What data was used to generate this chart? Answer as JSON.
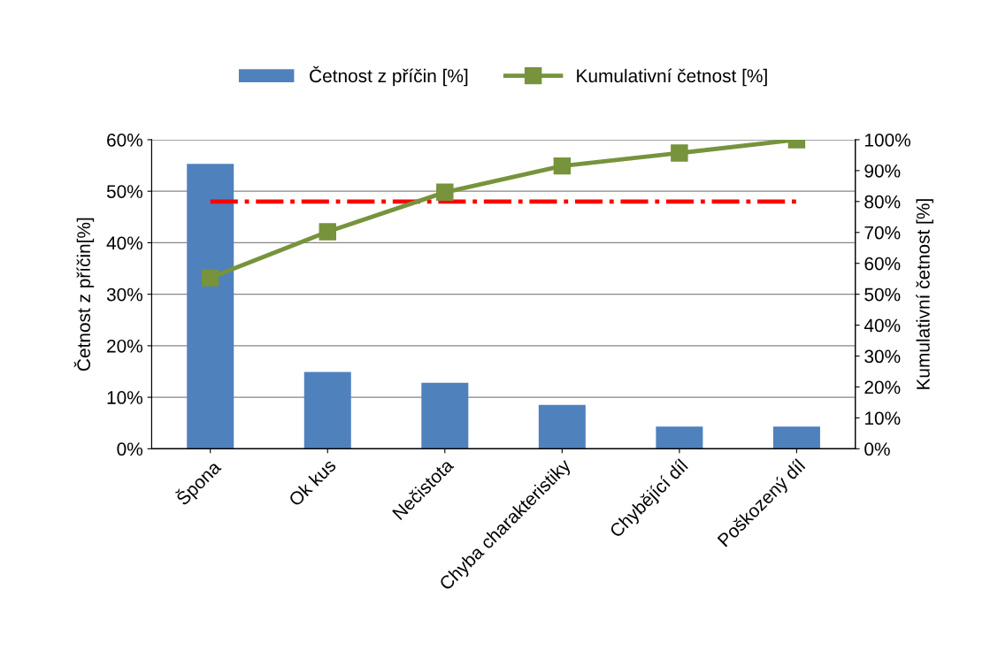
{
  "chart_data": {
    "type": "bar",
    "categories": [
      "Špona",
      "Ok kus",
      "Nečistota",
      "Chyba charakteristiky",
      "Chybějící díl",
      "Poškozený díl"
    ],
    "series": [
      {
        "name": "Četnost z příčin [%]",
        "color": "#4f81bd",
        "values": [
          55.3,
          14.9,
          12.8,
          8.5,
          4.3,
          4.3
        ]
      },
      {
        "name": "Kumulativní četnost [%]",
        "type": "line",
        "axis": "y2",
        "color": "#77933c",
        "marker": "square",
        "line_style": "solid",
        "values": [
          55.3,
          70.2,
          83.0,
          91.5,
          95.7,
          100
        ]
      }
    ],
    "ylabel": "Četnost z příčin[%]",
    "y2label": "Kumulativní četnost [%]",
    "ylim": [
      0,
      60
    ],
    "yticks": [
      {
        "value": 0,
        "label": "0%"
      },
      {
        "value": 10,
        "label": "10%"
      },
      {
        "value": 20,
        "label": "20%"
      },
      {
        "value": 30,
        "label": "30%"
      },
      {
        "value": 40,
        "label": "40%"
      },
      {
        "value": 50,
        "label": "50%"
      },
      {
        "value": 60,
        "label": "60%"
      }
    ],
    "y2lim": [
      0,
      100
    ],
    "y2ticks": [
      {
        "value": 0,
        "label": "0%"
      },
      {
        "value": 10,
        "label": "10%"
      },
      {
        "value": 20,
        "label": "20%"
      },
      {
        "value": 30,
        "label": "30%"
      },
      {
        "value": 40,
        "label": "40%"
      },
      {
        "value": 50,
        "label": "50%"
      },
      {
        "value": 60,
        "label": "60%"
      },
      {
        "value": 70,
        "label": "70%"
      },
      {
        "value": 80,
        "label": "80%"
      },
      {
        "value": 90,
        "label": "90%"
      },
      {
        "value": 100,
        "label": "100%"
      }
    ],
    "ref_lines": [
      {
        "axis": "y2",
        "value": 80,
        "color": "#ff0000",
        "line_style": "dashdot"
      }
    ],
    "grid": "y",
    "legend": "top"
  }
}
